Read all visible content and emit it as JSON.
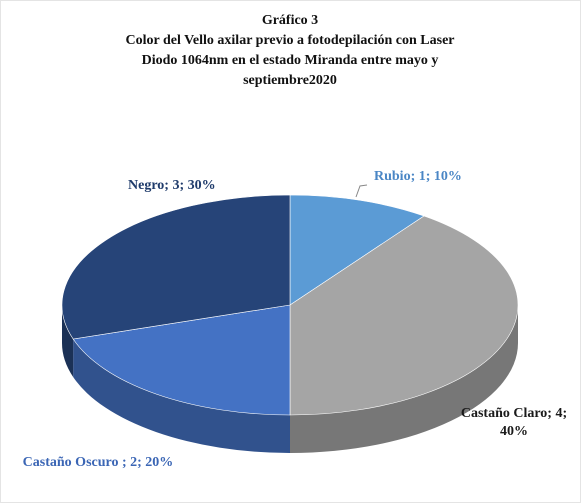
{
  "chart_data": {
    "type": "pie",
    "title": "Gráfico 3",
    "subtitle": [
      "Color del Vello axilar previo a fotodepilación con Laser",
      "Diodo 1064nm en el estado Miranda entre mayo y",
      "septiembre2020"
    ],
    "values": [
      1,
      4,
      2,
      3
    ],
    "value_labels": [
      "Rubio; 1; 10%",
      "Castaño Claro; 4; 40%",
      "Castaño Oscuro ; 2; 20%",
      "Negro; 3; 30%"
    ],
    "colors": [
      "#5b9bd5",
      "#a5a5a5",
      "#4472c4",
      "#264478"
    ],
    "label_colors": [
      "#4a86c5",
      "#1a1a1a",
      "#3b66b5",
      "#1f3b6b"
    ]
  }
}
